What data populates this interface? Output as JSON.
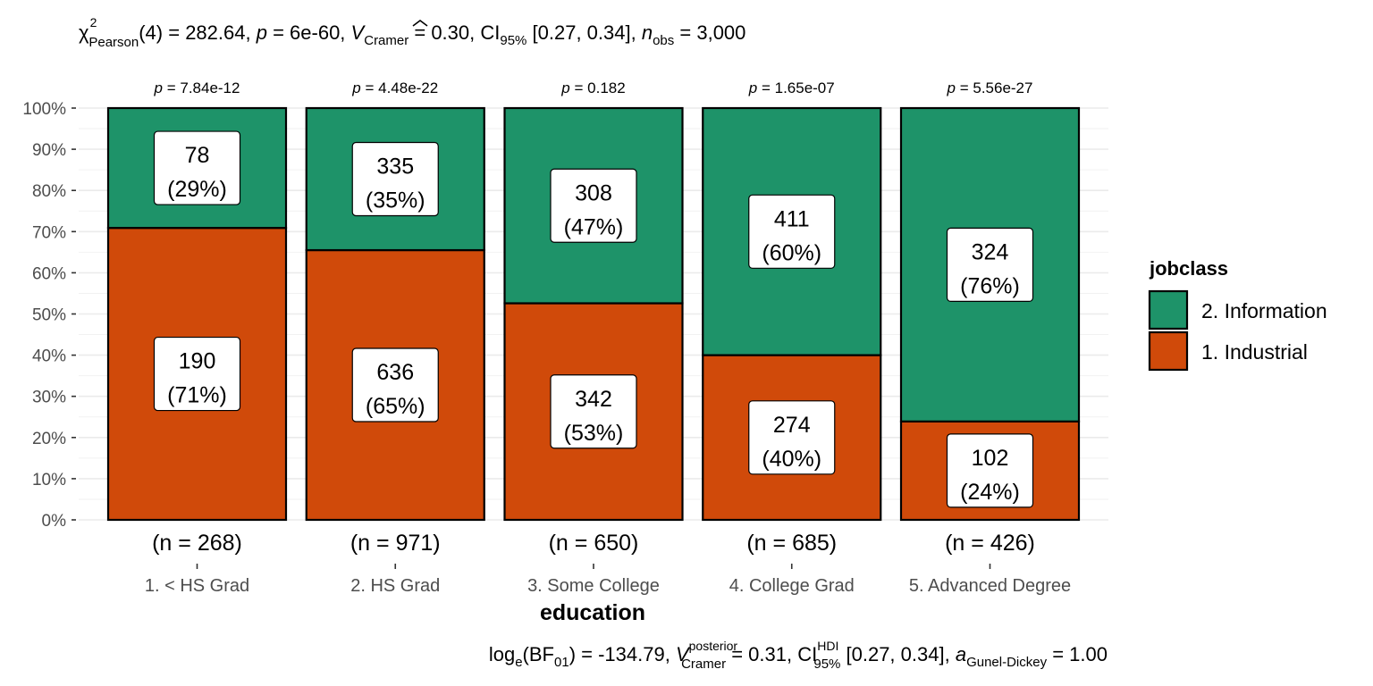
{
  "subtitle": {
    "chi": "χ",
    "chi_sup": "2",
    "chi_sub": "Pearson",
    "part1": "(4) = 282.64, ",
    "p_sym": "p",
    "part2": " = 6e-60, ",
    "v_sym": "V",
    "v_sub": "Cramer",
    "part3": " = 0.30, CI",
    "ci_sub": "95%",
    "part4": " [0.27, 0.34], ",
    "n_sym": "n",
    "n_sub": "obs",
    "part5": " = 3,000"
  },
  "caption": {
    "log": "log",
    "log_sub": "e",
    "bf": "(BF",
    "bf_sub": "01",
    "part1": ") = -134.79, ",
    "v_sym": "V",
    "v_sup": "posterior",
    "v_sub": "Cramer",
    "part2": " = 0.31, CI",
    "ci_sup": "HDI",
    "ci_sub": "95%",
    "part3": " [0.27, 0.34], ",
    "a_sym": "a",
    "a_sub": "Gunel-Dickey",
    "part4": " = 1.00"
  },
  "chart_data": {
    "type": "bar",
    "stacked": "percent",
    "xlabel": "education",
    "ylabel": "",
    "ylim": [
      0,
      100
    ],
    "yticks": [
      "0%",
      "10%",
      "20%",
      "30%",
      "40%",
      "50%",
      "60%",
      "70%",
      "80%",
      "90%",
      "100%"
    ],
    "grid": true,
    "legend_title": "jobclass",
    "legend_position": "right",
    "categories": [
      "1. < HS Grad",
      "2. HS Grad",
      "3. Some College",
      "4. College Grad",
      "5. Advanced Degree"
    ],
    "n_labels": [
      "(n = 268)",
      "(n = 971)",
      "(n = 650)",
      "(n = 685)",
      "(n = 426)"
    ],
    "p_values": [
      "7.84e-12",
      "4.48e-22",
      "0.182",
      "1.65e-07",
      "5.56e-27"
    ],
    "p_symbol": "p",
    "series": [
      {
        "name": "1. Industrial",
        "color": "#D04A0A",
        "counts": [
          190,
          636,
          342,
          274,
          102
        ],
        "percents": [
          70.9,
          65.5,
          52.6,
          40.0,
          23.9
        ],
        "pct_labels": [
          "(71%)",
          "(65%)",
          "(53%)",
          "(40%)",
          "(24%)"
        ]
      },
      {
        "name": "2. Information",
        "color": "#1E9369",
        "counts": [
          78,
          335,
          308,
          411,
          324
        ],
        "percents": [
          29.1,
          34.5,
          47.4,
          60.0,
          76.1
        ],
        "pct_labels": [
          "(29%)",
          "(35%)",
          "(47%)",
          "(60%)",
          "(76%)"
        ]
      }
    ]
  }
}
